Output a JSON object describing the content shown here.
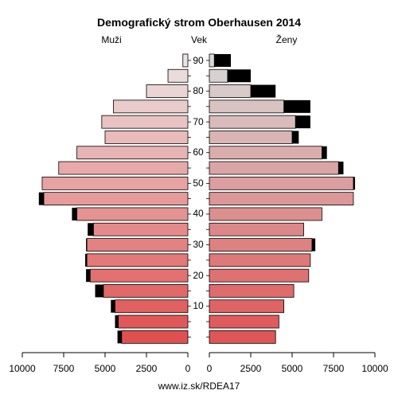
{
  "chart_data": {
    "type": "bar",
    "title": "Demografický strom Oberhausen 2014",
    "left_label": "Muži",
    "center_label": "Vek",
    "right_label": "Ženy",
    "footer": "www.iz.sk/RDEA17",
    "x_ticks_left": [
      "10000",
      "7500",
      "5000",
      "2500",
      "0"
    ],
    "x_ticks_right": [
      "0",
      "2500",
      "5000",
      "7500",
      "10000"
    ],
    "age_tick_labels": [
      "10",
      "20",
      "30",
      "40",
      "50",
      "60",
      "70",
      "80",
      "90"
    ],
    "xlim": [
      0,
      10000
    ],
    "age_groups": [
      "0-4",
      "5-9",
      "10-14",
      "15-19",
      "20-24",
      "25-29",
      "30-34",
      "35-39",
      "40-44",
      "45-49",
      "50-54",
      "55-59",
      "60-64",
      "65-69",
      "70-74",
      "75-79",
      "80-84",
      "85-89",
      "90-94"
    ],
    "series": [
      {
        "name": "Muži",
        "base": [
          4000,
          4200,
          4400,
          5100,
          5900,
          6100,
          6100,
          5700,
          6700,
          8700,
          8800,
          7800,
          6700,
          5000,
          5200,
          4500,
          2500,
          1200,
          300
        ],
        "excess": [
          250,
          200,
          250,
          500,
          250,
          100,
          50,
          350,
          300,
          300,
          0,
          0,
          0,
          0,
          0,
          0,
          0,
          0,
          0
        ]
      },
      {
        "name": "Ženy",
        "base": [
          4000,
          4200,
          4500,
          5100,
          6000,
          6100,
          6200,
          5700,
          6800,
          8700,
          8700,
          7800,
          6800,
          5000,
          5200,
          4500,
          2500,
          1100,
          300
        ],
        "excess": [
          0,
          0,
          0,
          0,
          0,
          0,
          200,
          0,
          0,
          0,
          100,
          300,
          300,
          400,
          900,
          1600,
          1500,
          1400,
          1000
        ]
      }
    ]
  }
}
